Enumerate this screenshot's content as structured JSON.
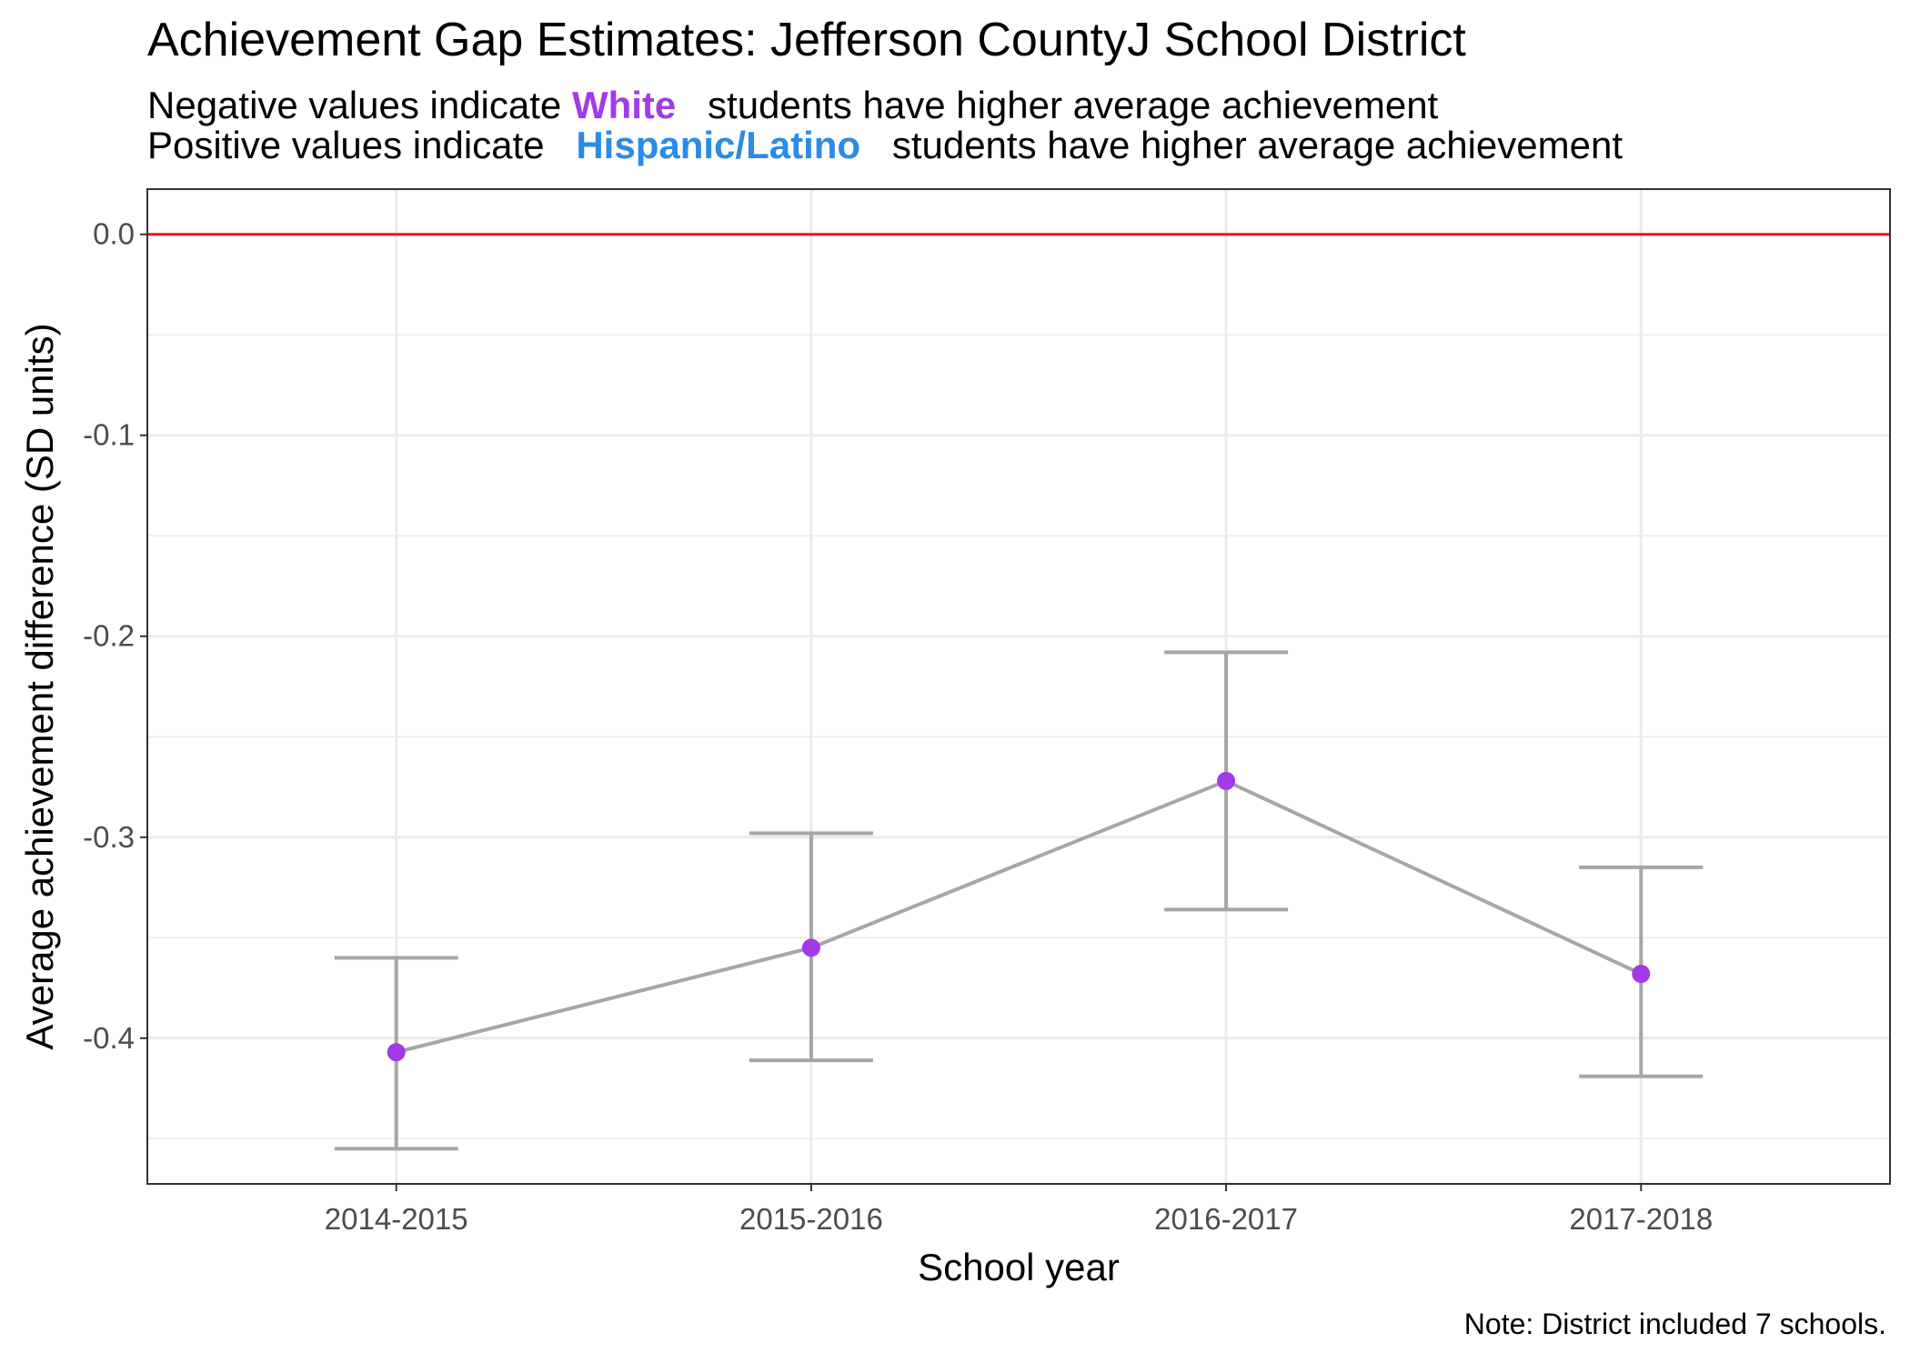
{
  "chart_data": {
    "type": "line",
    "title": "Achievement Gap Estimates: Jefferson CountyJ School District",
    "subtitle": {
      "line1": {
        "prefix": "Negative values indicate",
        "highlight": "White",
        "suffix": "students have higher average achievement"
      },
      "line2": {
        "prefix": "Positive values indicate",
        "highlight": "Hispanic/Latino",
        "suffix": "students have higher average achievement"
      }
    },
    "xlabel": "School year",
    "ylabel": "Average achievement difference (SD units)",
    "categories": [
      "2014-2015",
      "2015-2016",
      "2016-2017",
      "2017-2018"
    ],
    "series": [
      {
        "values": [
          -0.407,
          -0.355,
          -0.272,
          -0.368
        ],
        "lower": [
          -0.455,
          -0.411,
          -0.336,
          -0.419
        ],
        "upper": [
          -0.36,
          -0.298,
          -0.208,
          -0.315
        ]
      }
    ],
    "ylim": [
      -0.4725,
      0.0225
    ],
    "yticks": [
      0.0,
      -0.1,
      -0.2,
      -0.3,
      -0.4
    ],
    "ytick_labels": [
      "0.0",
      "-0.1",
      "-0.2",
      "-0.3",
      "-0.4"
    ],
    "reference_line": 0.0,
    "grid": true,
    "caption": "Note: District included 7 schools.",
    "colors": {
      "point": "#A23AE8",
      "line": "#A6A6A6",
      "errorbar": "#A6A6A6",
      "reference": "#E8141B",
      "white_label": "#A23AE8",
      "hispanic_label": "#2B8BE6",
      "grid": "#EBEBEB"
    }
  }
}
